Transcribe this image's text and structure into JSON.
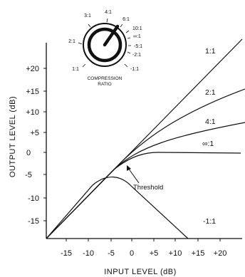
{
  "axes": {
    "x_title": "INPUT LEVEL (dB)",
    "y_title": "OUTPUT LEVEL (dB)",
    "x_ticks": [
      "-15",
      "-10",
      "-5",
      "0",
      "+5",
      "+10",
      "+15",
      "+20"
    ],
    "y_ticks": [
      "+20",
      "+15",
      "+10",
      "+5",
      "0",
      "-5",
      "-10",
      "-15"
    ]
  },
  "curve_labels": [
    "1:1",
    "2:1",
    "4:1",
    "∞:1",
    "-1:1"
  ],
  "annotation": "Threshold",
  "knob": {
    "caption_line1": "COMPRESSION",
    "caption_line2": "RATIO",
    "labels": [
      "1:1",
      "2:1",
      "3:1",
      "4:1",
      "6:1",
      "10:1",
      "∞:1",
      "-5:1",
      "-2:1",
      "-1:1"
    ]
  }
}
